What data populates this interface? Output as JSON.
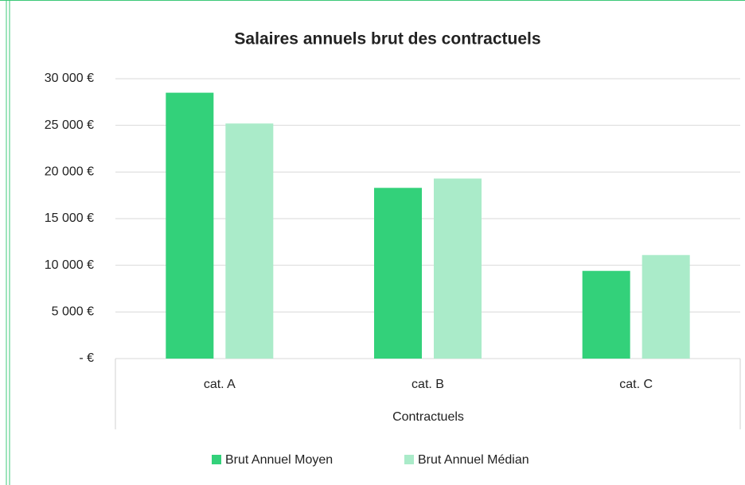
{
  "chart_data": {
    "type": "bar",
    "title": "Salaires annuels brut des contractuels",
    "x_label": "Contractuels",
    "categories": [
      "cat. A",
      "cat. B",
      "cat. C"
    ],
    "series": [
      {
        "name": "Brut Annuel Moyen",
        "color": "#33d17a",
        "values": [
          28500,
          18300,
          9400
        ]
      },
      {
        "name": "Brut Annuel Médian",
        "color": "#aaebc9",
        "values": [
          25200,
          19300,
          11100
        ]
      }
    ],
    "ylim": [
      0,
      30000
    ],
    "yticks": [
      {
        "value": 0,
        "label": "-  €"
      },
      {
        "value": 5000,
        "label": "5 000 €"
      },
      {
        "value": 10000,
        "label": "10 000 €"
      },
      {
        "value": 15000,
        "label": "15 000 €"
      },
      {
        "value": 20000,
        "label": "20 000 €"
      },
      {
        "value": 25000,
        "label": "25 000 €"
      },
      {
        "value": 30000,
        "label": "30 000 €"
      }
    ],
    "grid": true,
    "legend": "bottom"
  }
}
